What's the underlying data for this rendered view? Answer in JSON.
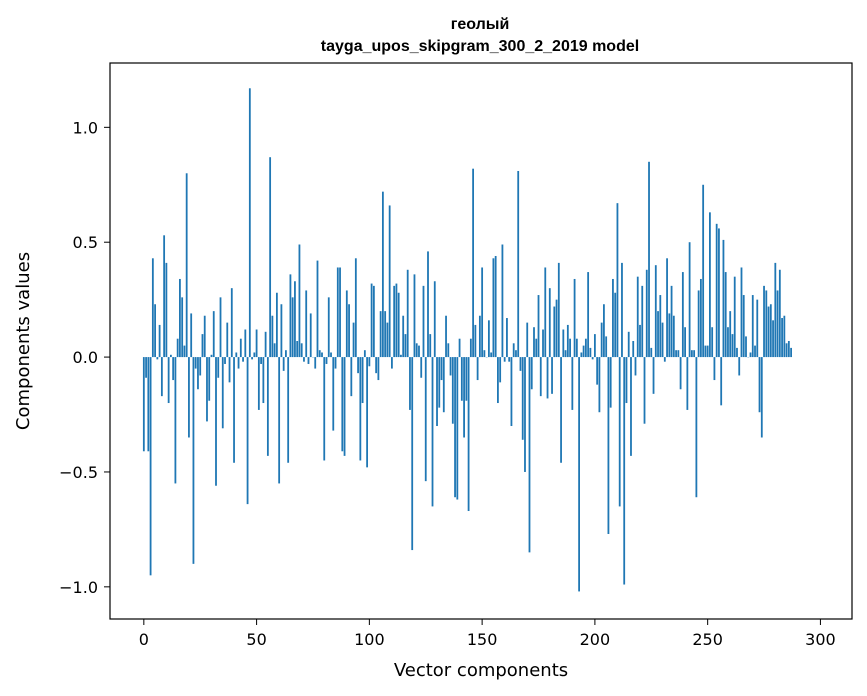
{
  "chart_data": {
    "type": "bar",
    "title_line1": "геолый",
    "title_line2": "tayga_upos_skipgram_300_2_2019 model",
    "xlabel": "Vector components",
    "ylabel": "Components values",
    "xlim": [
      -15,
      314
    ],
    "ylim": [
      -1.14,
      1.28
    ],
    "xticks": [
      0,
      50,
      100,
      150,
      200,
      250,
      300
    ],
    "xtick_labels": [
      "0",
      "50",
      "100",
      "150",
      "200",
      "250",
      "300"
    ],
    "yticks": [
      -1.0,
      -0.5,
      0.0,
      0.5,
      1.0
    ],
    "ytick_labels": [
      "−1.0",
      "−0.5",
      "0.0",
      "0.5",
      "1.0"
    ],
    "grid": false,
    "bar_color": "#1f77b4",
    "values": [
      -0.41,
      -0.09,
      -0.41,
      -0.95,
      0.43,
      0.23,
      -0.01,
      0.14,
      -0.17,
      0.53,
      0.41,
      -0.2,
      0.01,
      -0.1,
      -0.55,
      0.08,
      0.34,
      0.26,
      0.05,
      0.8,
      -0.35,
      0.19,
      -0.9,
      -0.05,
      -0.14,
      -0.08,
      0.1,
      0.18,
      -0.28,
      -0.19,
      0.01,
      0.2,
      -0.56,
      -0.09,
      0.26,
      -0.31,
      -0.03,
      0.15,
      -0.11,
      0.3,
      -0.46,
      0.02,
      -0.05,
      0.08,
      -0.02,
      0.12,
      -0.64,
      1.17,
      -0.01,
      0.02,
      0.12,
      -0.23,
      -0.03,
      -0.2,
      0.11,
      -0.43,
      0.87,
      0.18,
      0.06,
      0.28,
      -0.55,
      0.23,
      -0.06,
      0.03,
      -0.46,
      0.36,
      0.26,
      0.33,
      0.07,
      0.49,
      0.06,
      -0.02,
      0.29,
      -0.03,
      0.19,
      0.0,
      -0.05,
      0.42,
      0.03,
      0.02,
      -0.45,
      -0.03,
      0.26,
      0.02,
      -0.32,
      -0.05,
      0.39,
      0.39,
      -0.41,
      -0.43,
      0.29,
      0.23,
      -0.17,
      0.15,
      0.43,
      -0.07,
      -0.45,
      -0.2,
      0.03,
      -0.48,
      -0.04,
      0.32,
      0.31,
      -0.07,
      -0.1,
      0.2,
      0.72,
      0.2,
      0.15,
      0.66,
      -0.05,
      0.31,
      0.32,
      0.28,
      0.01,
      0.18,
      0.1,
      0.38,
      -0.23,
      -0.84,
      0.36,
      0.06,
      0.05,
      -0.09,
      0.31,
      -0.54,
      0.46,
      0.1,
      -0.65,
      0.33,
      -0.3,
      -0.22,
      -0.1,
      -0.24,
      0.18,
      0.06,
      -0.08,
      -0.29,
      -0.61,
      -0.62,
      0.08,
      -0.19,
      -0.35,
      -0.19,
      -0.67,
      0.08,
      0.82,
      0.14,
      -0.1,
      0.18,
      0.39,
      0.03,
      0.0,
      0.16,
      0.02,
      0.43,
      0.44,
      -0.2,
      -0.11,
      0.49,
      -0.02,
      0.17,
      -0.02,
      -0.3,
      0.06,
      0.03,
      0.81,
      -0.06,
      -0.36,
      -0.5,
      0.15,
      -0.85,
      -0.14,
      0.13,
      0.08,
      0.27,
      -0.17,
      0.12,
      0.39,
      -0.18,
      0.3,
      -0.16,
      0.22,
      0.25,
      0.41,
      -0.46,
      0.12,
      0.03,
      0.14,
      0.08,
      -0.23,
      0.34,
      0.08,
      -1.02,
      0.02,
      0.05,
      0.08,
      0.37,
      0.04,
      -0.01,
      0.1,
      -0.12,
      -0.24,
      0.15,
      0.23,
      0.09,
      -0.77,
      -0.22,
      0.34,
      0.28,
      0.67,
      -0.65,
      0.41,
      -0.99,
      -0.2,
      0.11,
      -0.43,
      0.07,
      -0.08,
      0.35,
      0.14,
      0.31,
      -0.29,
      0.38,
      0.85,
      0.04,
      -0.16,
      0.4,
      0.2,
      0.27,
      0.15,
      -0.02,
      0.43,
      0.19,
      0.31,
      0.18,
      0.03,
      0.03,
      -0.14,
      0.37,
      0.13,
      -0.23,
      0.5,
      0.03,
      0.03,
      -0.61,
      0.29,
      0.34,
      0.75,
      0.05,
      0.05,
      0.63,
      0.13,
      -0.1,
      0.58,
      0.56,
      -0.21,
      0.51,
      0.37,
      0.13,
      0.2,
      0.1,
      0.35,
      0.04,
      -0.08,
      0.39,
      0.27,
      0.09,
      0.0,
      0.02,
      0.27,
      0.05,
      0.25,
      -0.24,
      -0.35,
      0.31,
      0.29,
      0.22,
      0.23,
      0.16,
      0.41,
      0.29,
      0.38,
      0.17,
      0.18,
      0.06,
      0.07,
      0.04
    ]
  }
}
